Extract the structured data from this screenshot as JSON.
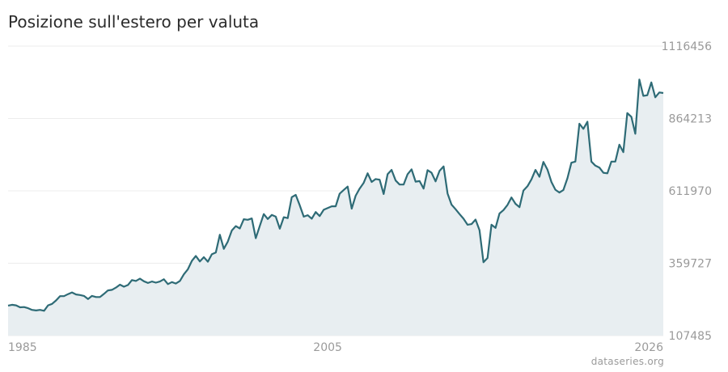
{
  "title": "Posizione sull'estero per valuta",
  "source": "dataseries.org",
  "colors": {
    "line": "#2e6b76",
    "area": "#e8eef1",
    "grid": "#ececec"
  },
  "chart_data": {
    "type": "area",
    "title": "Posizione sull'estero per valuta",
    "xlabel": "",
    "ylabel": "",
    "xlim": [
      1985,
      2026
    ],
    "ylim": [
      107485,
      1116456
    ],
    "x_ticks": [
      "1985",
      "2005",
      "2026"
    ],
    "y_ticks": [
      107485,
      359727,
      611970,
      864213,
      1116456
    ],
    "grid": true,
    "legend": "none",
    "series": [
      {
        "x": [
          1985.0,
          1985.25,
          1985.5,
          1985.75,
          1986.0,
          1986.25,
          1986.5,
          1986.75,
          1987.0,
          1987.25,
          1987.5,
          1987.75,
          1988.0,
          1988.25,
          1988.5,
          1988.75,
          1989.0,
          1989.25,
          1989.5,
          1989.75,
          1990.0,
          1990.25,
          1990.5,
          1990.75,
          1991.0,
          1991.25,
          1991.5,
          1991.75,
          1992.0,
          1992.25,
          1992.5,
          1992.75,
          1993.0,
          1993.25,
          1993.5,
          1993.75,
          1994.0,
          1994.25,
          1994.5,
          1994.75,
          1995.0,
          1995.25,
          1995.5,
          1995.75,
          1996.0,
          1996.25,
          1996.5,
          1996.75,
          1997.0,
          1997.25,
          1997.5,
          1997.75,
          1998.0,
          1998.25,
          1998.5,
          1998.75,
          1999.0,
          1999.25,
          1999.5,
          1999.75,
          2000.0,
          2000.25,
          2000.5,
          2000.75,
          2001.0,
          2001.25,
          2001.5,
          2001.75,
          2002.0,
          2002.25,
          2002.5,
          2002.75,
          2003.0,
          2003.25,
          2003.5,
          2003.75,
          2004.0,
          2004.25,
          2004.5,
          2004.75,
          2005.0,
          2005.25,
          2005.5,
          2005.75,
          2006.0,
          2006.25,
          2006.5,
          2006.75,
          2007.0,
          2007.25,
          2007.5,
          2007.75,
          2008.0,
          2008.25,
          2008.5,
          2008.75,
          2009.0,
          2009.25,
          2009.5,
          2009.75,
          2010.0,
          2010.25,
          2010.5,
          2010.75,
          2011.0,
          2011.25,
          2011.5,
          2011.75,
          2012.0,
          2012.25,
          2012.5,
          2012.75,
          2013.0,
          2013.25,
          2013.5,
          2013.75,
          2014.0,
          2014.25,
          2014.5,
          2014.75,
          2015.0,
          2015.25,
          2015.5,
          2015.75,
          2016.0,
          2016.25,
          2016.5,
          2016.75,
          2017.0,
          2017.25,
          2017.5,
          2017.75,
          2018.0,
          2018.25,
          2018.5,
          2018.75,
          2019.0,
          2019.25,
          2019.5,
          2019.75,
          2020.0,
          2020.25,
          2020.5,
          2020.75,
          2021.0,
          2021.25,
          2021.5,
          2021.75,
          2022.0,
          2022.25,
          2022.5,
          2022.75,
          2023.0,
          2023.25,
          2023.5,
          2023.75,
          2024.0,
          2024.25,
          2024.5,
          2024.75,
          2025.0,
          2025.25,
          2025.5,
          2025.75,
          2026.0
        ],
        "values": [
          212000,
          215000,
          213000,
          206000,
          207000,
          203000,
          197000,
          195000,
          197000,
          194000,
          213000,
          218000,
          230000,
          245000,
          245000,
          252000,
          258000,
          251000,
          249000,
          246000,
          235000,
          246000,
          242000,
          242000,
          253000,
          265000,
          267000,
          275000,
          285000,
          278000,
          284000,
          301000,
          298000,
          306000,
          297000,
          291000,
          296000,
          292000,
          296000,
          304000,
          287000,
          294000,
          289000,
          298000,
          321000,
          339000,
          368000,
          385000,
          366000,
          381000,
          365000,
          391000,
          397000,
          459000,
          410000,
          435000,
          474000,
          489000,
          481000,
          513000,
          511000,
          516000,
          447000,
          490000,
          531000,
          514000,
          528000,
          522000,
          480000,
          520000,
          517000,
          590000,
          598000,
          562000,
          522000,
          527000,
          515000,
          538000,
          524000,
          546000,
          552000,
          558000,
          558000,
          602000,
          615000,
          627000,
          550000,
          595000,
          620000,
          640000,
          673000,
          643000,
          653000,
          651000,
          601000,
          670000,
          685000,
          648000,
          634000,
          634000,
          670000,
          687000,
          644000,
          646000,
          620000,
          684000,
          675000,
          645000,
          682000,
          697000,
          603000,
          564000,
          548000,
          531000,
          515000,
          494000,
          496000,
          512000,
          475000,
          363000,
          378000,
          494000,
          483000,
          533000,
          545000,
          563000,
          589000,
          567000,
          555000,
          613000,
          628000,
          652000,
          685000,
          661000,
          713000,
          686000,
          643000,
          616000,
          606000,
          615000,
          656000,
          710000,
          714000,
          846000,
          828000,
          853000,
          714000,
          700000,
          693000,
          675000,
          673000,
          714000,
          714000,
          773000,
          747000,
          883000,
          870000,
          811000,
          1000000,
          943000,
          945000,
          990000,
          938000,
          955000,
          953000
        ]
      }
    ]
  }
}
